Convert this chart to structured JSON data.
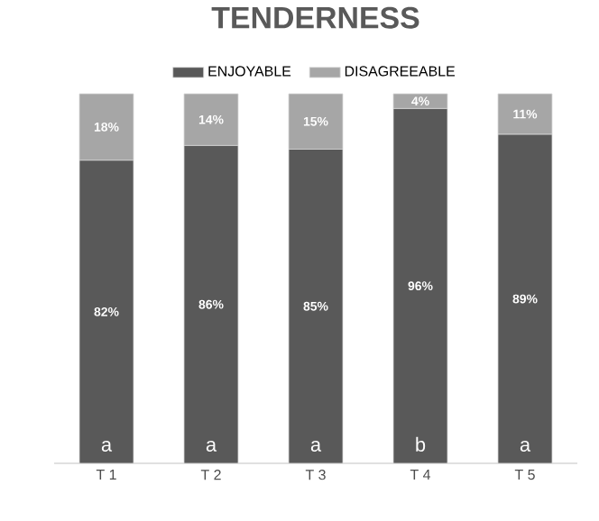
{
  "chart_data": {
    "type": "bar",
    "title": "TENDERNESS",
    "stacked": true,
    "legend": "top",
    "categories": [
      "T 1",
      "T 2",
      "T 3",
      "T 4",
      "T 5"
    ],
    "series": [
      {
        "name": "ENJOYABLE",
        "color": "#595959",
        "values": [
          82,
          86,
          85,
          96,
          89
        ],
        "value_labels": [
          "82%",
          "86%",
          "85%",
          "96%",
          "89%"
        ]
      },
      {
        "name": "DISAGREEABLE",
        "color": "#a6a6a6",
        "values": [
          18,
          14,
          15,
          4,
          11
        ],
        "value_labels": [
          "18%",
          "14%",
          "15%",
          "4%",
          "11%"
        ]
      }
    ],
    "annotations": [
      "a",
      "a",
      "a",
      "b",
      "a"
    ]
  }
}
